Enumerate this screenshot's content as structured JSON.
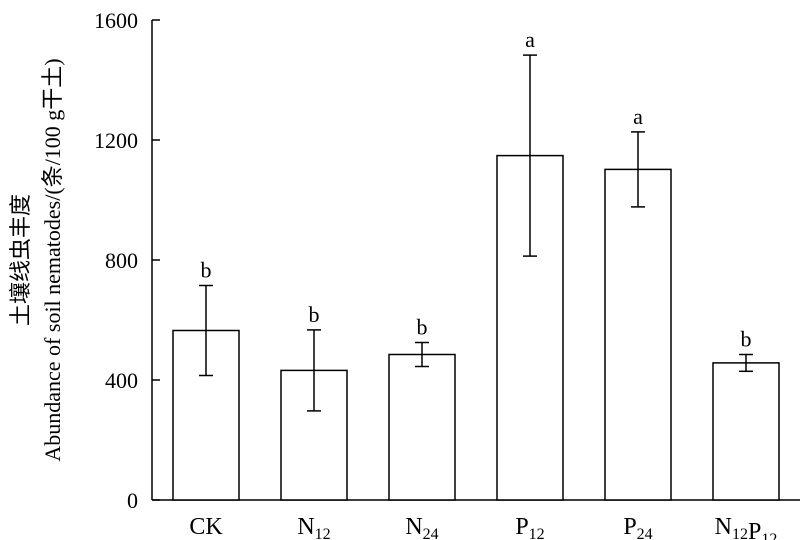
{
  "chart_data": {
    "type": "bar",
    "title": "",
    "ylabel_line1": "土壤线虫丰度",
    "ylabel_line2": "Abundance of soil nematodes/(条/100 g干土)",
    "xlabel": "",
    "ylim": [
      0,
      1600
    ],
    "yticks": [
      "0",
      "400",
      "800",
      "1200",
      "1600"
    ],
    "categories": [
      {
        "main": "CK",
        "sub": ""
      },
      {
        "main": "N",
        "sub": "12"
      },
      {
        "main": "N",
        "sub": "24"
      },
      {
        "main": "P",
        "sub": "12"
      },
      {
        "main": "P",
        "sub": "24"
      },
      {
        "main": "N",
        "sub": "12",
        "main2": "P",
        "sub2": "12"
      }
    ],
    "values": [
      565,
      432,
      485,
      1148,
      1102,
      457
    ],
    "errors": [
      150,
      135,
      40,
      335,
      125,
      28
    ],
    "significance": [
      "b",
      "b",
      "b",
      "a",
      "a",
      "b"
    ],
    "grid": false,
    "colors": {
      "bar_fill": "#ffffff",
      "bar_stroke": "#000000"
    }
  }
}
